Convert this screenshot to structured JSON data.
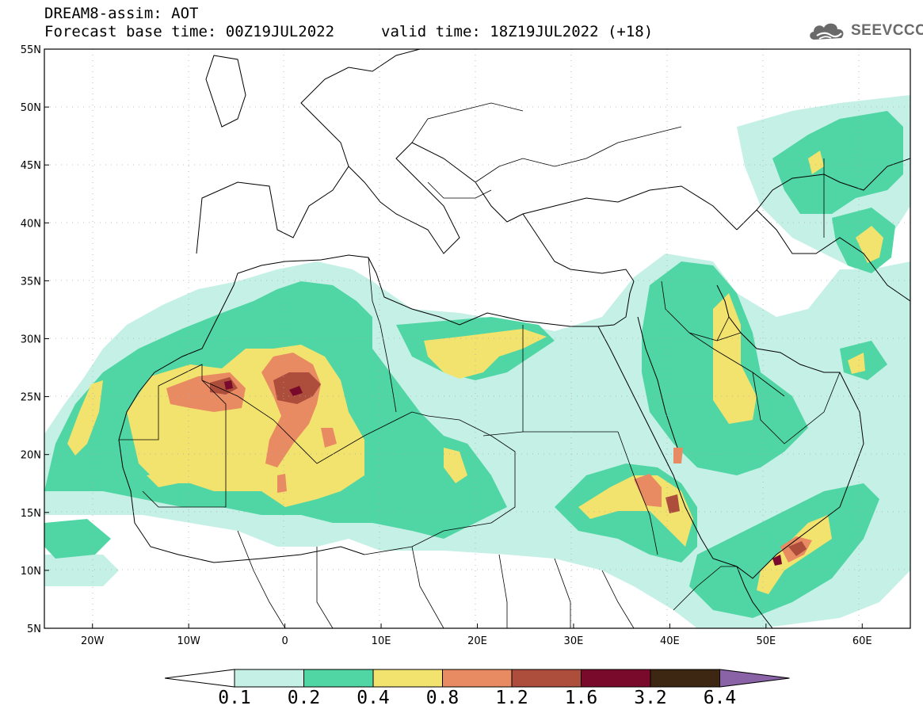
{
  "header": {
    "line1": "DREAM8-assim: AOT",
    "line2_base": "Forecast base time: 00Z19JUL2022",
    "line2_valid": "valid time: 18Z19JUL2022 (+18)",
    "logo_text": "SEEVCCC"
  },
  "map": {
    "lon_range": [
      -25,
      65
    ],
    "lat_range": [
      5,
      55
    ],
    "lat_ticks": [
      "55N",
      "50N",
      "45N",
      "40N",
      "35N",
      "30N",
      "25N",
      "20N",
      "15N",
      "10N",
      "5N"
    ],
    "lon_ticks": [
      "20W",
      "10W",
      "0",
      "10E",
      "20E",
      "30E",
      "40E",
      "50E",
      "60E"
    ],
    "grid": "dotted"
  },
  "colorbar": {
    "levels": [
      "0.1",
      "0.2",
      "0.4",
      "0.8",
      "1.2",
      "1.6",
      "3.2",
      "6.4"
    ],
    "colors": [
      "#c4f0e6",
      "#4fd6a4",
      "#f2e26e",
      "#e88a62",
      "#ad4d3b",
      "#7a0a2b",
      "#3d2612",
      "#8a63a6"
    ]
  }
}
